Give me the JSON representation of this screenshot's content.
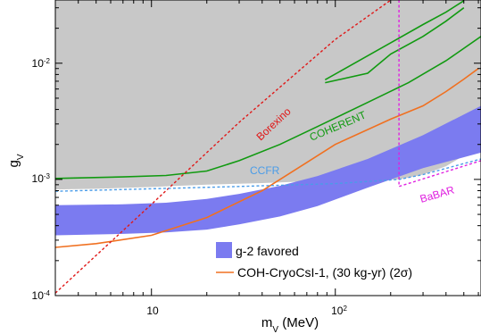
{
  "chart_data": {
    "type": "line",
    "title": "",
    "xlabel": {
      "main": "m",
      "sub": "V",
      "unit": " (MeV)"
    },
    "ylabel": {
      "main": "g",
      "sub": "V"
    },
    "x_scale": "log",
    "y_scale": "log",
    "xlim": [
      3,
      620
    ],
    "ylim": [
      0.0001,
      0.035
    ],
    "x_ticks": [
      {
        "value": 10,
        "base": "10",
        "exp": ""
      },
      {
        "value": 100,
        "base": "10",
        "exp": "2"
      }
    ],
    "y_ticks": [
      {
        "value": 0.0001,
        "base": "10",
        "exp": "-4"
      },
      {
        "value": 0.001,
        "base": "10",
        "exp": "-3"
      },
      {
        "value": 0.01,
        "base": "10",
        "exp": "-2"
      }
    ],
    "colors": {
      "excluded_fill": "#c8c8c8",
      "g2_band": "#7b7bf0",
      "cryocsi": "#f07020",
      "coherent": "#119a11",
      "borexino": "#e01818",
      "ccfr": "#4a9ce8",
      "babar": "#e020e0",
      "frame": "#000000"
    },
    "excluded_region_boundary": {
      "x": [
        3,
        5,
        10,
        20,
        40,
        80,
        150,
        222,
        300,
        400,
        500,
        620
      ],
      "y": [
        0.00082,
        0.00083,
        0.00086,
        0.0009,
        0.00093,
        0.00097,
        0.00098,
        0.001,
        0.0011,
        0.0013,
        0.0016,
        0.002
      ]
    },
    "g2_band": {
      "name": "g-2 favored",
      "x": [
        3,
        7,
        12,
        20,
        30,
        50,
        80,
        150,
        300,
        620
      ],
      "upper": [
        0.0006,
        0.00061,
        0.00063,
        0.00068,
        0.00075,
        0.00088,
        0.00107,
        0.0015,
        0.0024,
        0.0043
      ],
      "lower": [
        0.00033,
        0.00034,
        0.00035,
        0.00037,
        0.00041,
        0.00048,
        0.00059,
        0.00085,
        0.00125,
        0.0017
      ]
    },
    "series": [
      {
        "name": "COH-CryoCsI-1, (30 kg-yr) (2σ)",
        "style": "solid",
        "x": [
          3,
          5,
          10,
          20,
          40,
          70,
          100,
          200,
          300,
          400,
          500,
          600
        ],
        "y": [
          0.00026,
          0.00028,
          0.00033,
          0.00047,
          0.0008,
          0.0014,
          0.002,
          0.0033,
          0.0043,
          0.0057,
          0.0073,
          0.009
        ]
      },
      {
        "label": "COHERENT",
        "style": "solid",
        "x": [
          3,
          7,
          12,
          20,
          30,
          50,
          80,
          150,
          250,
          400,
          620
        ],
        "y": [
          0.00102,
          0.00105,
          0.00108,
          0.00118,
          0.00145,
          0.002,
          0.00285,
          0.0046,
          0.0068,
          0.0105,
          0.017
        ]
      },
      {
        "style": "solid",
        "x": [
          88,
          120,
          200,
          300,
          400,
          500
        ],
        "y": [
          0.0072,
          0.0095,
          0.015,
          0.0215,
          0.0275,
          0.0345
        ]
      },
      {
        "style": "solid",
        "x": [
          88,
          150,
          200,
          300,
          400,
          500
        ],
        "y": [
          0.0068,
          0.0082,
          0.012,
          0.017,
          0.023,
          0.03
        ]
      },
      {
        "label": "Borexino",
        "style": "dashed",
        "x": [
          3,
          10,
          30,
          100,
          300
        ],
        "y": [
          0.000105,
          0.00061,
          0.0031,
          0.016,
          0.055
        ]
      },
      {
        "label": "CCFR",
        "style": "dashed",
        "x": [
          3,
          10,
          30,
          100,
          222,
          300,
          620
        ],
        "y": [
          0.00079,
          0.00083,
          0.00087,
          0.00092,
          0.001,
          0.0011,
          0.0015
        ]
      },
      {
        "label": "BaBAR",
        "style": "dashed",
        "x": [
          222,
          222,
          620
        ],
        "y": [
          0.035,
          0.00087,
          0.00145
        ]
      }
    ],
    "legend_position": "lower-right"
  }
}
